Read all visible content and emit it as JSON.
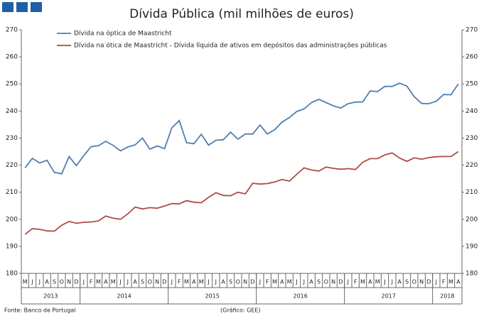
{
  "chart_data": {
    "type": "line",
    "title": "Dívida Pública (mil milhões de euros)",
    "categories": [
      "M",
      "J",
      "J",
      "A",
      "S",
      "O",
      "N",
      "D",
      "J",
      "F",
      "M",
      "A",
      "M",
      "J",
      "J",
      "A",
      "S",
      "O",
      "N",
      "D",
      "J",
      "F",
      "M",
      "A",
      "M",
      "J",
      "J",
      "A",
      "S",
      "O",
      "N",
      "D",
      "J",
      "F",
      "M",
      "A",
      "M",
      "J",
      "J",
      "A",
      "S",
      "O",
      "N",
      "D",
      "J",
      "F",
      "M",
      "A",
      "M",
      "J",
      "J",
      "A",
      "S",
      "O",
      "N",
      "D",
      "J",
      "F",
      "M",
      "A"
    ],
    "years": [
      "2013",
      "2014",
      "2015",
      "2016",
      "2017",
      "2018"
    ],
    "series": [
      {
        "name": "Dívida na óptica de Maastricht",
        "color": "#4f7fb0",
        "values": [
          219,
          222.5,
          220.8,
          221.8,
          217.3,
          216.8,
          223.2,
          219.8,
          223.5,
          226.8,
          227.2,
          228.8,
          227.3,
          225.3,
          226.7,
          227.5,
          230,
          225.9,
          227.1,
          226.1,
          233.8,
          236.5,
          228.3,
          227.9,
          231.4,
          227.4,
          229.2,
          229.4,
          232.2,
          229.6,
          231.5,
          231.5,
          234.8,
          231.5,
          233.1,
          235.9,
          237.6,
          239.8,
          240.8,
          243.1,
          244.3,
          243.1,
          241.9,
          241.1,
          242.7,
          243.3,
          243.4,
          247.4,
          247.2,
          249.1,
          249.1,
          250.3,
          249.2,
          245.3,
          242.8,
          242.7,
          243.6,
          246.1,
          246.0,
          250.0
        ]
      },
      {
        "name": "Dívida na ótica de Maastricht - Dívida líquida de ativos em depósitos das administrações públicas",
        "color": "#b04a48",
        "values": [
          194.4,
          196.5,
          196.3,
          195.7,
          195.6,
          197.8,
          199.2,
          198.5,
          198.9,
          199.0,
          199.4,
          201.2,
          200.4,
          200.0,
          202.0,
          204.5,
          203.8,
          204.3,
          204.1,
          204.9,
          205.8,
          205.7,
          206.9,
          206.3,
          206.1,
          208.1,
          209.8,
          208.8,
          208.7,
          210.0,
          209.4,
          213.3,
          213.0,
          213.2,
          213.8,
          214.7,
          214.1,
          216.6,
          219.0,
          218.2,
          217.8,
          219.3,
          218.8,
          218.5,
          218.7,
          218.4,
          221.1,
          222.4,
          222.4,
          223.8,
          224.5,
          222.6,
          221.4,
          222.7,
          222.2,
          222.8,
          223.1,
          223.2,
          223.2,
          225.0
        ]
      }
    ],
    "ylim": [
      180,
      270
    ],
    "yticks": [
      180,
      190,
      200,
      210,
      220,
      230,
      240,
      250,
      260,
      270
    ],
    "y2lim": [
      180,
      270
    ],
    "y2ticks": [
      180,
      190,
      200,
      210,
      220,
      230,
      240,
      250,
      260,
      270
    ],
    "grid": false,
    "legend": "top-left",
    "source": "Fonte: Banco de Portugal",
    "credit": "(Gráfico: GEE)"
  }
}
